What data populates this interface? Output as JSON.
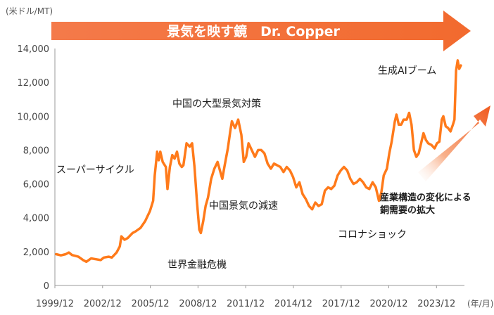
{
  "chart_data": {
    "type": "line",
    "title": "景気を映す鏡　Dr. Copper",
    "ylabel": "(米ドル/MT)",
    "xunit": "(年/月)",
    "ylim": [
      0,
      14000
    ],
    "yticks": [
      0,
      2000,
      4000,
      6000,
      8000,
      10000,
      12000,
      14000
    ],
    "ytick_labels": [
      "0",
      "2,000",
      "4,000",
      "6,000",
      "8,000",
      "10,000",
      "12,000",
      "14,000"
    ],
    "xlim": [
      1999.92,
      2025.5
    ],
    "xticks": [
      1999.92,
      2002.92,
      2005.92,
      2008.92,
      2011.92,
      2014.92,
      2017.92,
      2020.92,
      2023.92
    ],
    "xtick_labels": [
      "1999/12",
      "2002/12",
      "2005/12",
      "2008/12",
      "2011/12",
      "2014/12",
      "2017/12",
      "2020/12",
      "2023/12"
    ],
    "grid": false,
    "color": "#ff7a1a",
    "series": [
      {
        "values": [
          [
            2000.0,
            1850
          ],
          [
            2000.3,
            1780
          ],
          [
            2000.6,
            1850
          ],
          [
            2000.8,
            1950
          ],
          [
            2001.0,
            1800
          ],
          [
            2001.4,
            1700
          ],
          [
            2001.7,
            1500
          ],
          [
            2001.9,
            1400
          ],
          [
            2002.2,
            1600
          ],
          [
            2002.5,
            1550
          ],
          [
            2002.8,
            1500
          ],
          [
            2003.0,
            1650
          ],
          [
            2003.3,
            1700
          ],
          [
            2003.5,
            1650
          ],
          [
            2003.8,
            1950
          ],
          [
            2004.0,
            2300
          ],
          [
            2004.1,
            2900
          ],
          [
            2004.3,
            2700
          ],
          [
            2004.5,
            2800
          ],
          [
            2004.8,
            3100
          ],
          [
            2005.0,
            3200
          ],
          [
            2005.3,
            3400
          ],
          [
            2005.6,
            3800
          ],
          [
            2005.9,
            4400
          ],
          [
            2006.1,
            5000
          ],
          [
            2006.2,
            6500
          ],
          [
            2006.35,
            7900
          ],
          [
            2006.45,
            7400
          ],
          [
            2006.55,
            7900
          ],
          [
            2006.7,
            7300
          ],
          [
            2006.9,
            7000
          ],
          [
            2007.0,
            5700
          ],
          [
            2007.15,
            7000
          ],
          [
            2007.3,
            7700
          ],
          [
            2007.45,
            7500
          ],
          [
            2007.6,
            7900
          ],
          [
            2007.75,
            7200
          ],
          [
            2007.9,
            7000
          ],
          [
            2008.0,
            7100
          ],
          [
            2008.2,
            8400
          ],
          [
            2008.4,
            8200
          ],
          [
            2008.55,
            8400
          ],
          [
            2008.7,
            7000
          ],
          [
            2008.85,
            5000
          ],
          [
            2009.0,
            3300
          ],
          [
            2009.1,
            3100
          ],
          [
            2009.25,
            3800
          ],
          [
            2009.4,
            4700
          ],
          [
            2009.55,
            5200
          ],
          [
            2009.75,
            6300
          ],
          [
            2009.95,
            6900
          ],
          [
            2010.15,
            7300
          ],
          [
            2010.3,
            6800
          ],
          [
            2010.45,
            6300
          ],
          [
            2010.6,
            7100
          ],
          [
            2010.8,
            8100
          ],
          [
            2010.95,
            9100
          ],
          [
            2011.05,
            9700
          ],
          [
            2011.25,
            9300
          ],
          [
            2011.45,
            9800
          ],
          [
            2011.65,
            8900
          ],
          [
            2011.8,
            7300
          ],
          [
            2011.95,
            7600
          ],
          [
            2012.1,
            8400
          ],
          [
            2012.3,
            8000
          ],
          [
            2012.5,
            7600
          ],
          [
            2012.7,
            8000
          ],
          [
            2012.9,
            8000
          ],
          [
            2013.1,
            7800
          ],
          [
            2013.3,
            7200
          ],
          [
            2013.5,
            6900
          ],
          [
            2013.7,
            7200
          ],
          [
            2013.9,
            7100
          ],
          [
            2014.1,
            7000
          ],
          [
            2014.3,
            6700
          ],
          [
            2014.5,
            7000
          ],
          [
            2014.7,
            6800
          ],
          [
            2014.9,
            6400
          ],
          [
            2015.1,
            5800
          ],
          [
            2015.3,
            6100
          ],
          [
            2015.5,
            5400
          ],
          [
            2015.7,
            5100
          ],
          [
            2015.9,
            4700
          ],
          [
            2016.1,
            4500
          ],
          [
            2016.3,
            4900
          ],
          [
            2016.5,
            4700
          ],
          [
            2016.7,
            4800
          ],
          [
            2016.9,
            5600
          ],
          [
            2017.1,
            5800
          ],
          [
            2017.3,
            5700
          ],
          [
            2017.5,
            5900
          ],
          [
            2017.7,
            6500
          ],
          [
            2017.9,
            6800
          ],
          [
            2018.1,
            7000
          ],
          [
            2018.3,
            6800
          ],
          [
            2018.5,
            6300
          ],
          [
            2018.7,
            6000
          ],
          [
            2018.9,
            6100
          ],
          [
            2019.1,
            6300
          ],
          [
            2019.3,
            6100
          ],
          [
            2019.5,
            5800
          ],
          [
            2019.7,
            5700
          ],
          [
            2019.9,
            6100
          ],
          [
            2020.1,
            5800
          ],
          [
            2020.3,
            5000
          ],
          [
            2020.45,
            5500
          ],
          [
            2020.6,
            6500
          ],
          [
            2020.8,
            6900
          ],
          [
            2020.95,
            7800
          ],
          [
            2021.1,
            8500
          ],
          [
            2021.3,
            9700
          ],
          [
            2021.4,
            10100
          ],
          [
            2021.55,
            9500
          ],
          [
            2021.7,
            9500
          ],
          [
            2021.85,
            9800
          ],
          [
            2022.05,
            9800
          ],
          [
            2022.2,
            10200
          ],
          [
            2022.35,
            9500
          ],
          [
            2022.5,
            8000
          ],
          [
            2022.65,
            7600
          ],
          [
            2022.8,
            7800
          ],
          [
            2022.95,
            8400
          ],
          [
            2023.1,
            9000
          ],
          [
            2023.25,
            8600
          ],
          [
            2023.4,
            8400
          ],
          [
            2023.6,
            8300
          ],
          [
            2023.8,
            8100
          ],
          [
            2023.95,
            8400
          ],
          [
            2024.1,
            8500
          ],
          [
            2024.25,
            9800
          ],
          [
            2024.35,
            10000
          ],
          [
            2024.5,
            9400
          ],
          [
            2024.65,
            9300
          ],
          [
            2024.8,
            9100
          ],
          [
            2024.95,
            9500
          ],
          [
            2025.05,
            9800
          ],
          [
            2025.15,
            12700
          ],
          [
            2025.25,
            13300
          ],
          [
            2025.35,
            12800
          ],
          [
            2025.45,
            13000
          ]
        ]
      }
    ],
    "annotations": [
      {
        "id": "boom",
        "text": "生成AIブーム"
      },
      {
        "id": "stimulus",
        "text": "中国の大型景気対策"
      },
      {
        "id": "supercycle",
        "text": "スーパーサイクル"
      },
      {
        "id": "slowdown",
        "text": "中国景気の減速"
      },
      {
        "id": "corona",
        "text": "コロナショック"
      },
      {
        "id": "gfc",
        "text": "世界金融危機"
      },
      {
        "id": "structure1",
        "text": "産業構造の変化による"
      },
      {
        "id": "structure2",
        "text": "銅需要の拡大"
      }
    ]
  }
}
